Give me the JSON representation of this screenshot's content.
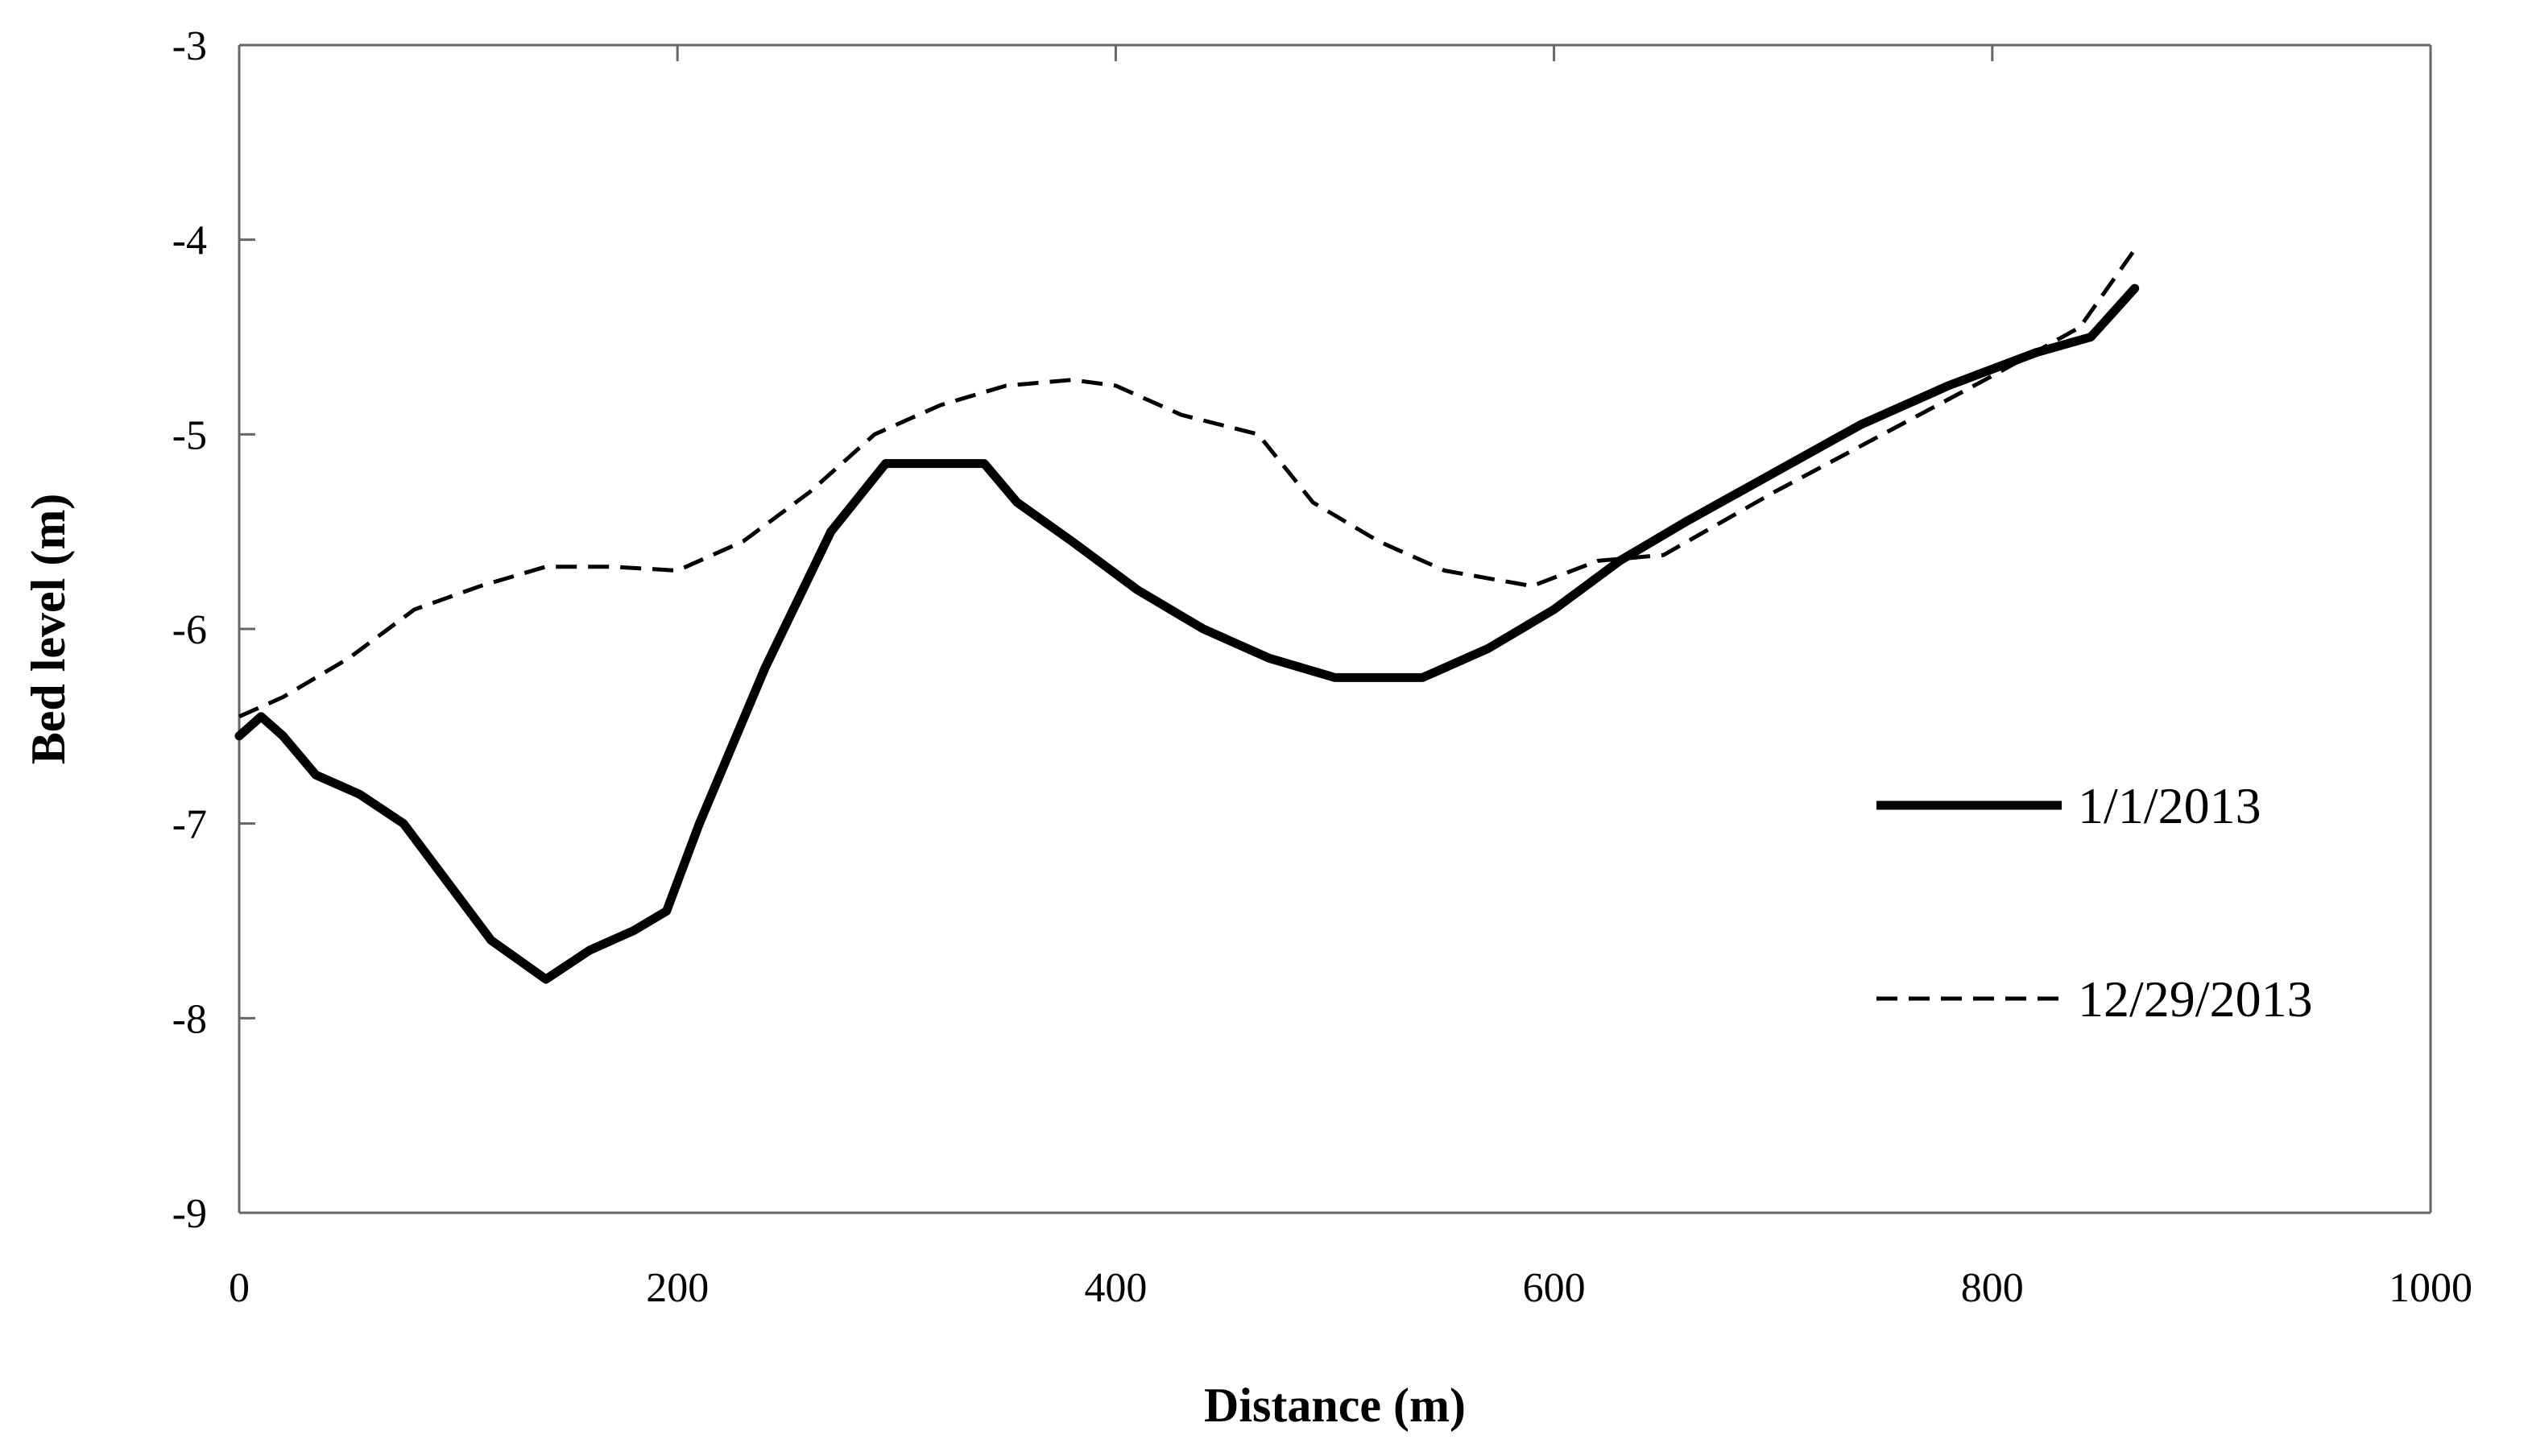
{
  "chart_data": {
    "type": "line",
    "title": "",
    "xlabel": "Distance (m)",
    "ylabel": "Bed level (m)",
    "xlim": [
      0,
      1000
    ],
    "ylim": [
      -9,
      -3
    ],
    "xticks": [
      0,
      200,
      400,
      600,
      800,
      1000
    ],
    "yticks": [
      -3,
      -4,
      -5,
      -6,
      -7,
      -8,
      -9
    ],
    "grid": false,
    "legend_position": "right",
    "series": [
      {
        "name": "1/1/2013",
        "style": "solid",
        "color": "#000000",
        "x": [
          0,
          10,
          20,
          35,
          55,
          75,
          95,
          115,
          140,
          160,
          180,
          195,
          210,
          240,
          270,
          295,
          310,
          340,
          355,
          380,
          410,
          440,
          470,
          500,
          540,
          570,
          600,
          630,
          660,
          700,
          740,
          780,
          820,
          845,
          865
        ],
        "y": [
          -6.55,
          -6.45,
          -6.55,
          -6.75,
          -6.85,
          -7.0,
          -7.3,
          -7.6,
          -7.8,
          -7.65,
          -7.55,
          -7.45,
          -7.0,
          -6.2,
          -5.5,
          -5.15,
          -5.15,
          -5.15,
          -5.35,
          -5.55,
          -5.8,
          -6.0,
          -6.15,
          -6.25,
          -6.25,
          -6.1,
          -5.9,
          -5.65,
          -5.45,
          -5.2,
          -4.95,
          -4.75,
          -4.58,
          -4.5,
          -4.25
        ]
      },
      {
        "name": "12/29/2013",
        "style": "dashed",
        "color": "#000000",
        "x": [
          0,
          20,
          50,
          80,
          110,
          140,
          170,
          200,
          230,
          260,
          290,
          320,
          350,
          380,
          400,
          430,
          465,
          490,
          520,
          550,
          590,
          620,
          650,
          700,
          750,
          800,
          840,
          865
        ],
        "y": [
          -6.45,
          -6.35,
          -6.15,
          -5.9,
          -5.78,
          -5.68,
          -5.68,
          -5.7,
          -5.55,
          -5.3,
          -5.0,
          -4.85,
          -4.75,
          -4.72,
          -4.75,
          -4.9,
          -5.0,
          -5.35,
          -5.55,
          -5.7,
          -5.78,
          -5.65,
          -5.62,
          -5.3,
          -5.0,
          -4.7,
          -4.45,
          -4.05
        ]
      }
    ]
  }
}
